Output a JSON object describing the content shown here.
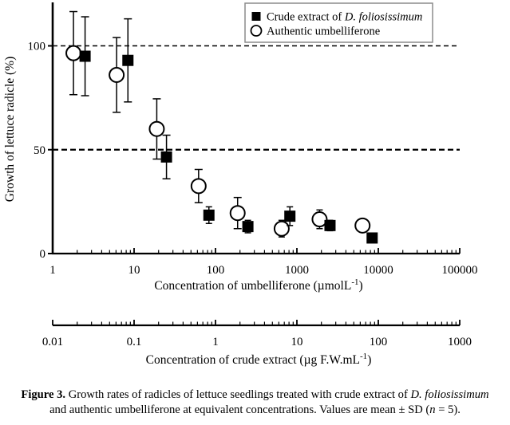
{
  "colors": {
    "marker": "#000000",
    "axis": "#000000",
    "legend_border": "#8c8c8c",
    "background": "#ffffff"
  },
  "chart_data": {
    "type": "scatter",
    "x_scale": "log",
    "y_axis": {
      "label": "Growth of lettuce radicle (%)",
      "min": 0,
      "max": 100,
      "tick_values": [
        0,
        50,
        100
      ],
      "tick_labels": [
        "0",
        "50",
        "100"
      ],
      "dashed_gridlines": [
        50,
        100
      ]
    },
    "x_axis_main": {
      "label_prefix": "Concentration of umbelliferone (µmolL",
      "label_sup": "-1",
      "label_suffix": ")",
      "min_exp": 0,
      "max_exp": 5,
      "tick_labels": [
        "1",
        "10",
        "100",
        "1000",
        "10000",
        "100000"
      ]
    },
    "x_axis_secondary": {
      "label_prefix": "Concentration of crude extract (µg F.W.mL",
      "label_sup": "-1",
      "label_suffix": ")",
      "min_exp": -2,
      "max_exp": 3,
      "tick_labels": [
        "0.01",
        "0.1",
        "1",
        "10",
        "100",
        "1000"
      ]
    },
    "legend": [
      {
        "marker": "filled-square",
        "label_prefix": "Crude extract of ",
        "label_italic": "D. foliosissimum"
      },
      {
        "marker": "open-circle",
        "label_prefix": "Authentic umbelliferone",
        "label_italic": ""
      }
    ],
    "series": [
      {
        "name": "Authentic umbelliferone",
        "marker": "open-circle",
        "points": [
          {
            "x": 1.8,
            "y": 96.5,
            "sd": 20
          },
          {
            "x": 6.1,
            "y": 86,
            "sd": 18
          },
          {
            "x": 19,
            "y": 60,
            "sd": 14.5
          },
          {
            "x": 62,
            "y": 32.5,
            "sd": 8
          },
          {
            "x": 187,
            "y": 19.5,
            "sd": 7.5
          },
          {
            "x": 650,
            "y": 12,
            "sd": 4
          },
          {
            "x": 1900,
            "y": 16.5,
            "sd": 4.5
          },
          {
            "x": 6400,
            "y": 13.5,
            "sd": 2
          }
        ]
      },
      {
        "name": "Crude extract of D. foliosissimum",
        "marker": "filled-square",
        "points": [
          {
            "x": 2.5,
            "y": 95,
            "sd": 19
          },
          {
            "x": 8.4,
            "y": 93,
            "sd": 20
          },
          {
            "x": 25,
            "y": 46.5,
            "sd": 10.5
          },
          {
            "x": 83,
            "y": 18.5,
            "sd": 4
          },
          {
            "x": 250,
            "y": 13,
            "sd": 3
          },
          {
            "x": 820,
            "y": 18,
            "sd": 4.5
          },
          {
            "x": 2550,
            "y": 13.5,
            "sd": 2.5
          },
          {
            "x": 8400,
            "y": 7.5,
            "sd": 2
          }
        ]
      }
    ]
  },
  "caption": {
    "lines": [
      [
        {
          "text": "Figure 3. ",
          "bold": true
        },
        {
          "text": "Growth rates of radicles of lettuce seedlings treated with crude extract of "
        },
        {
          "text": "D. foliosissimum",
          "italic": true
        }
      ],
      [
        {
          "text": "and authentic umbelliferone at equivalent concentrations. Values are mean ± SD ("
        },
        {
          "text": "n",
          "italic": true
        },
        {
          "text": " = 5)."
        }
      ]
    ]
  }
}
